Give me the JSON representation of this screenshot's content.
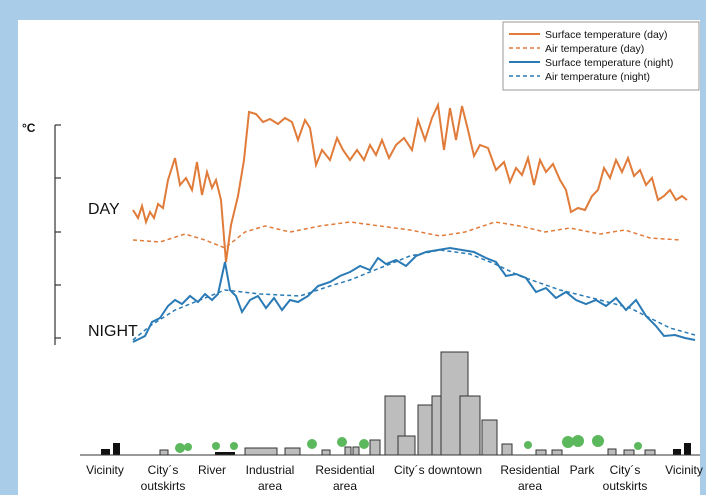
{
  "axis": {
    "unit": "°C"
  },
  "labels": {
    "day": "DAY",
    "night": "NIGHT"
  },
  "legend": [
    "Surface temperature (day)",
    "Air temperature (day)",
    "Surface temperature (night)",
    "Air temperature (night)"
  ],
  "zones": [
    {
      "lines": [
        "Vicinity"
      ]
    },
    {
      "lines": [
        "City´s",
        "outskirts"
      ]
    },
    {
      "lines": [
        "River"
      ]
    },
    {
      "lines": [
        "Industrial",
        "area"
      ]
    },
    {
      "lines": [
        "Residential",
        "area"
      ]
    },
    {
      "lines": [
        "City´s downtown"
      ]
    },
    {
      "lines": [
        "Residential",
        "area"
      ]
    },
    {
      "lines": [
        "Park"
      ]
    },
    {
      "lines": [
        "City´s",
        "outskirts"
      ]
    },
    {
      "lines": [
        "Vicinity"
      ]
    }
  ]
}
